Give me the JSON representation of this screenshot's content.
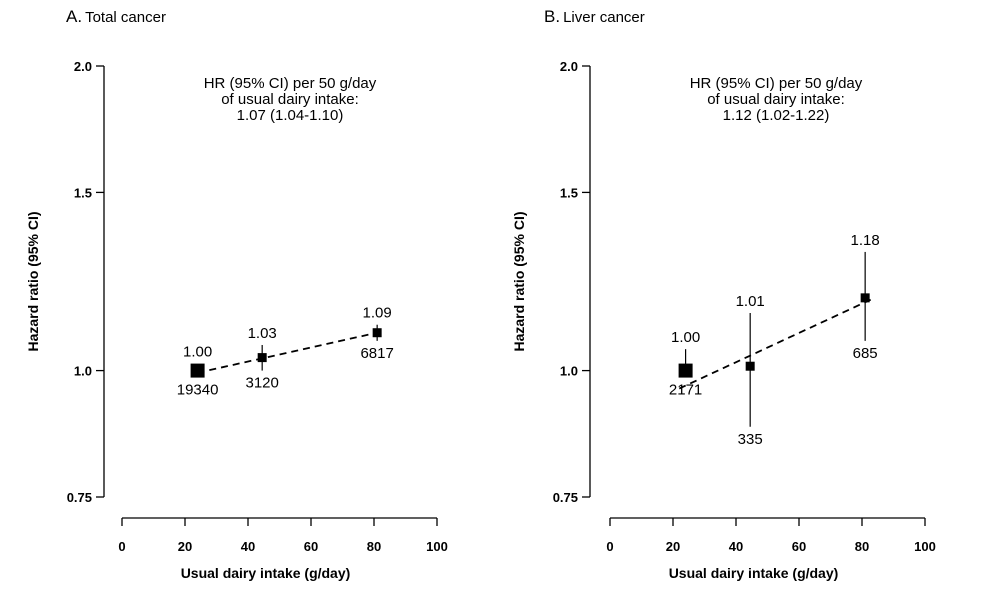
{
  "chart_data": [
    {
      "type": "scatter",
      "panel_letter": "A.",
      "title": "Total cancer",
      "xlabel": "Usual dairy intake (g/day)",
      "ylabel": "Hazard ratio (95% CI)",
      "xlim": [
        0,
        100
      ],
      "xticks": [
        "0",
        "20",
        "40",
        "60",
        "80",
        "100"
      ],
      "ylim": [
        0.75,
        2.0
      ],
      "yscale": "log",
      "yticks": [
        "0.75",
        "1.0",
        "1.5",
        "2.0"
      ],
      "annotation": [
        "HR (95% CI) per 50 g/day",
        "of usual dairy intake:",
        "1.07 (1.04-1.10)"
      ],
      "points": [
        {
          "x": 24,
          "hr": 1.0,
          "lo": 1.0,
          "hi": 1.0,
          "hr_label": "1.00",
          "n_label": "19340",
          "weight": "large"
        },
        {
          "x": 44.5,
          "hr": 1.03,
          "lo": 1.0,
          "hi": 1.06,
          "hr_label": "1.03",
          "n_label": "3120",
          "weight": "small"
        },
        {
          "x": 81,
          "hr": 1.09,
          "lo": 1.07,
          "hi": 1.11,
          "hr_label": "1.09",
          "n_label": "6817",
          "weight": "small"
        }
      ],
      "trend": {
        "x": [
          24,
          81
        ],
        "y": [
          0.995,
          1.09
        ]
      }
    },
    {
      "type": "scatter",
      "panel_letter": "B.",
      "title": "Liver cancer",
      "xlabel": "Usual dairy intake (g/day)",
      "ylabel": "Hazard ratio (95% CI)",
      "xlim": [
        0,
        100
      ],
      "xticks": [
        "0",
        "20",
        "40",
        "60",
        "80",
        "100"
      ],
      "ylim": [
        0.75,
        2.0
      ],
      "yscale": "log",
      "yticks": [
        "0.75",
        "1.0",
        "1.5",
        "2.0"
      ],
      "annotation": [
        "HR (95% CI) per 50 g/day",
        "of usual dairy intake:",
        "1.12 (1.02-1.22)"
      ],
      "points": [
        {
          "x": 24,
          "hr": 1.0,
          "lo": 1.0,
          "hi": 1.05,
          "hr_label": "1.00",
          "n_label": "2171",
          "weight": "large"
        },
        {
          "x": 44.5,
          "hr": 1.01,
          "lo": 0.88,
          "hi": 1.14,
          "hr_label": "1.01",
          "n_label": "335",
          "weight": "small"
        },
        {
          "x": 81,
          "hr": 1.18,
          "lo": 1.07,
          "hi": 1.31,
          "hr_label": "1.18",
          "n_label": "685",
          "weight": "small"
        }
      ],
      "trend": {
        "x": [
          22,
          84
        ],
        "y": [
          0.96,
          1.18
        ]
      }
    }
  ]
}
